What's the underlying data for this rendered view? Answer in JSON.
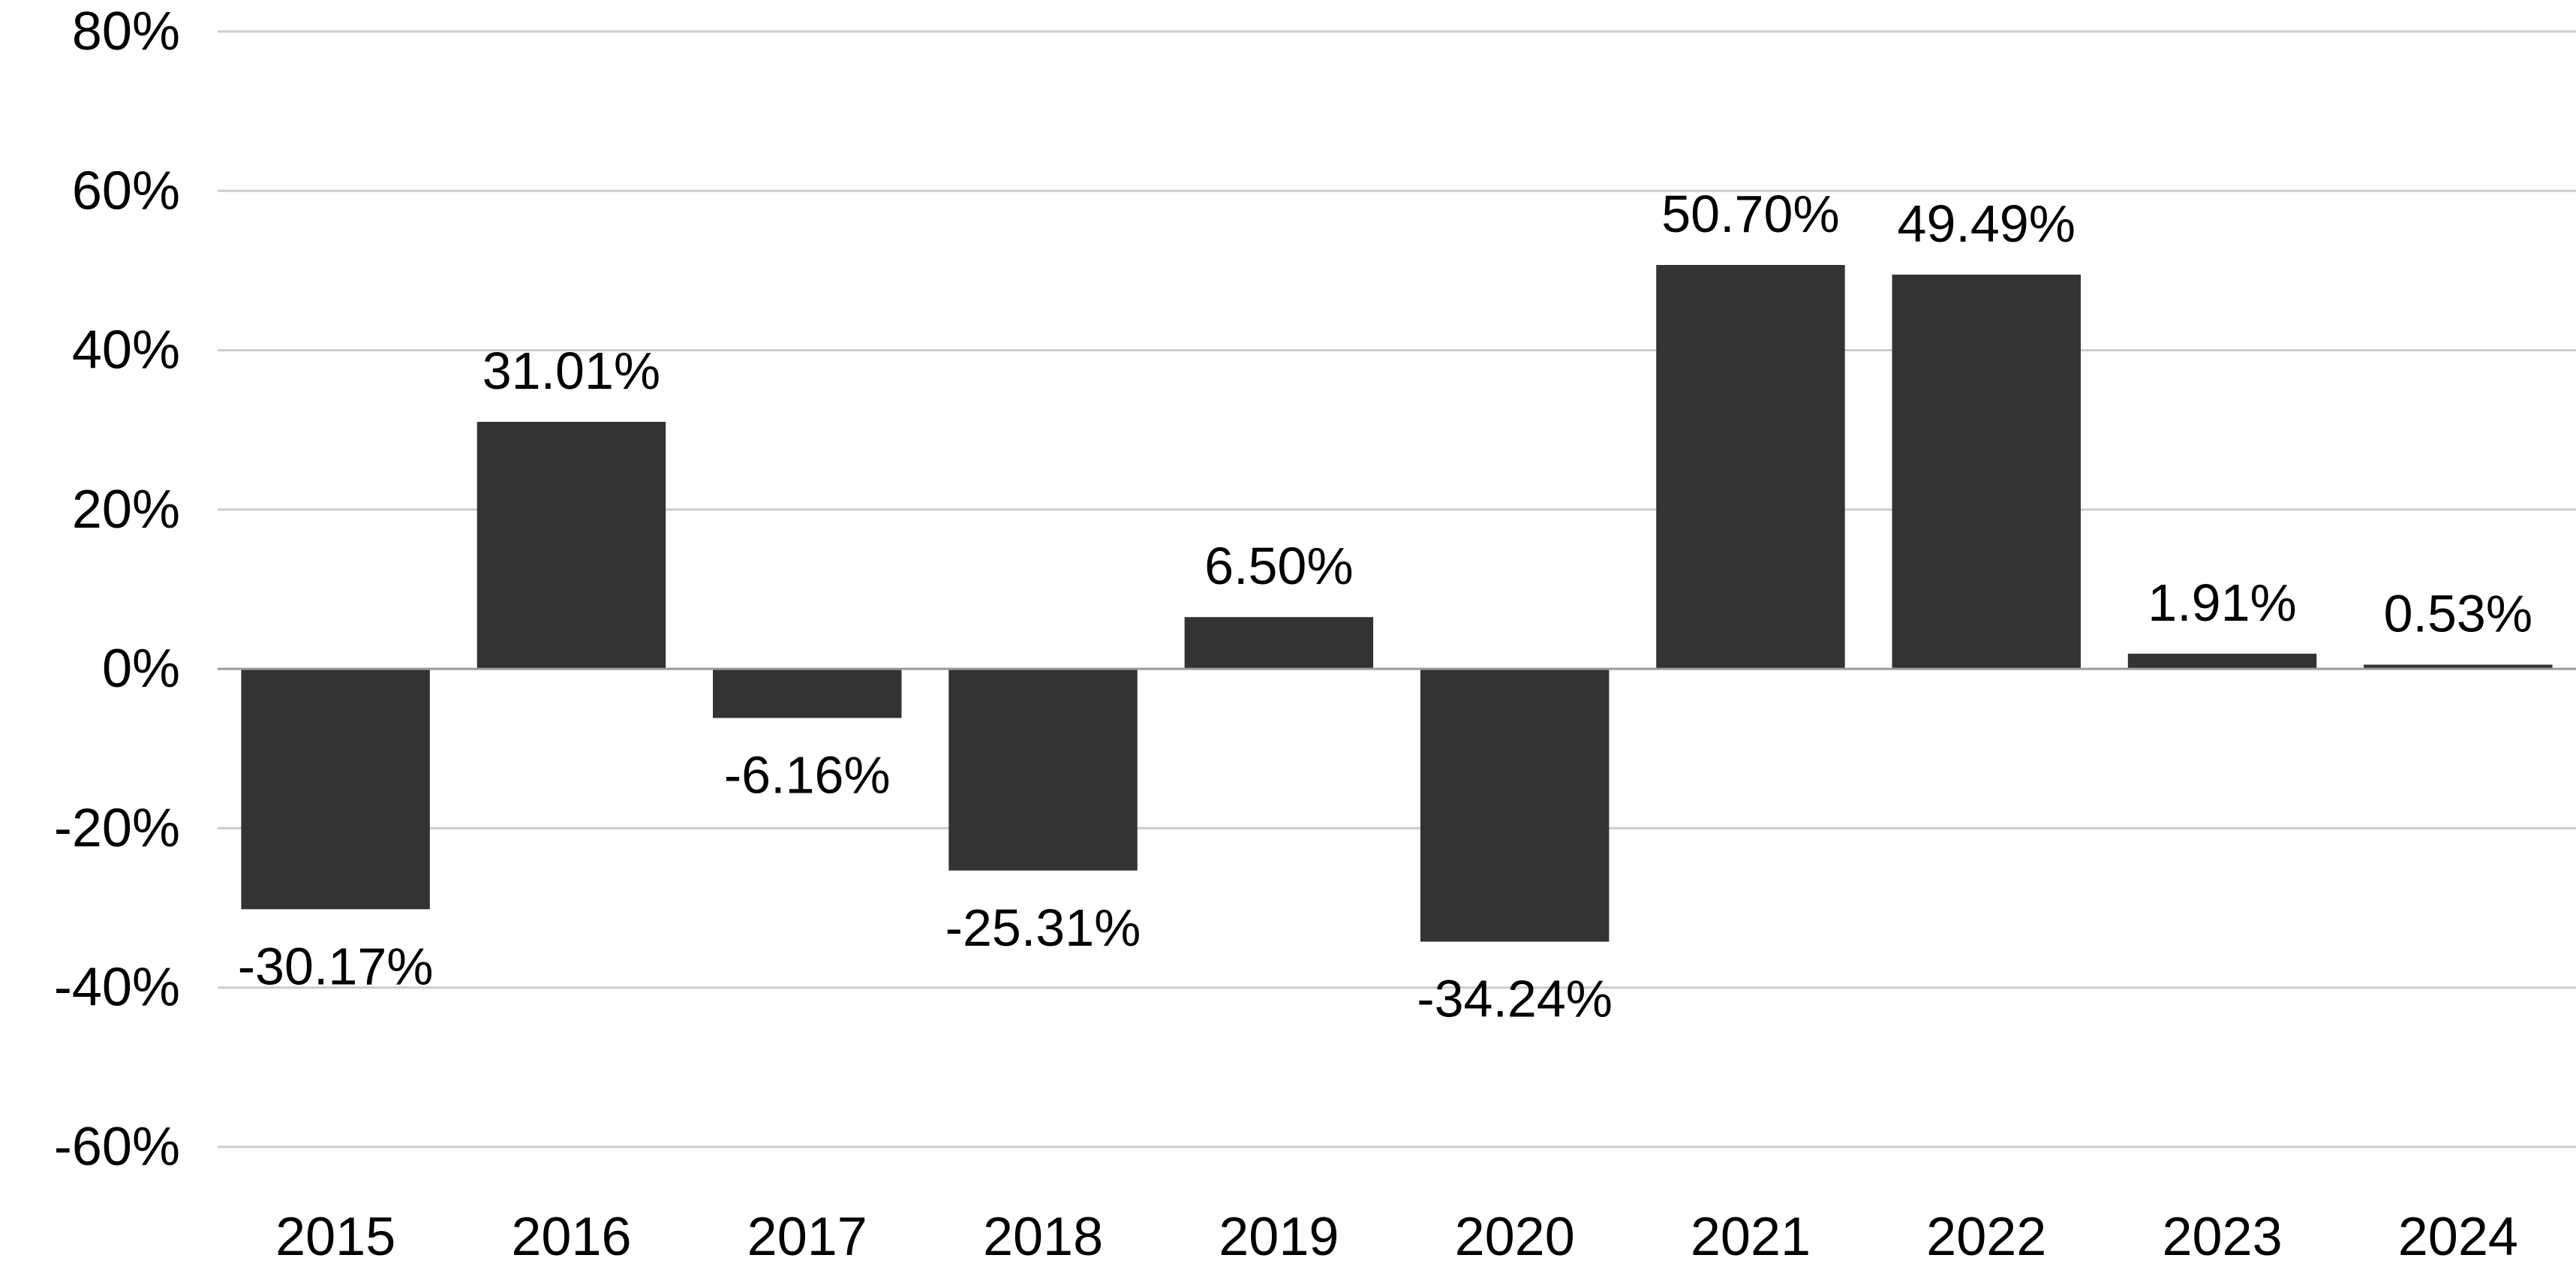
{
  "chart_data": {
    "type": "bar",
    "categories": [
      "2015",
      "2016",
      "2017",
      "2018",
      "2019",
      "2020",
      "2021",
      "2022",
      "2023",
      "2024"
    ],
    "values": [
      -30.17,
      31.01,
      -6.16,
      -25.31,
      6.5,
      -34.24,
      50.7,
      49.49,
      1.91,
      0.53
    ],
    "data_labels": [
      "-30.17%",
      "31.01%",
      "-6.16%",
      "-25.31%",
      "6.50%",
      "-34.24%",
      "50.70%",
      "49.49%",
      "1.91%",
      "0.53%"
    ],
    "y_ticks": [
      80,
      60,
      40,
      20,
      0,
      -20,
      -40,
      -60
    ],
    "y_tick_labels": [
      "80%",
      "60%",
      "40%",
      "20%",
      "0%",
      "-20%",
      "-40%",
      "-60%"
    ],
    "ylim": [
      -60,
      80
    ],
    "grid": true,
    "legend": "none",
    "bar_color": "#333333",
    "title": "",
    "xlabel": "",
    "ylabel": ""
  }
}
